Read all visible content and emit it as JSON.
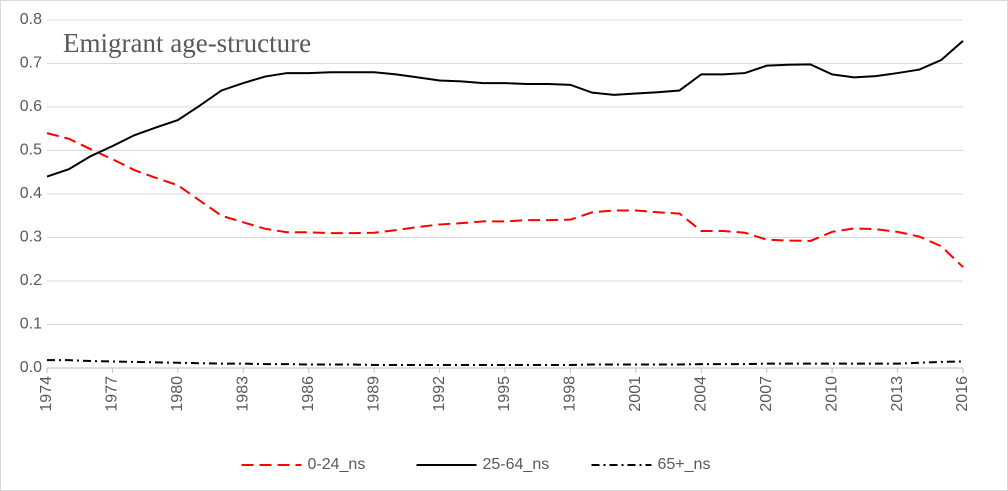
{
  "chart_data": {
    "type": "line",
    "title": "Emigrant age-structure",
    "x": [
      1974,
      1975,
      1976,
      1977,
      1978,
      1979,
      1980,
      1981,
      1982,
      1983,
      1984,
      1985,
      1986,
      1987,
      1988,
      1989,
      1990,
      1991,
      1992,
      1993,
      1994,
      1995,
      1996,
      1997,
      1998,
      1999,
      2000,
      2001,
      2002,
      2003,
      2004,
      2005,
      2006,
      2007,
      2008,
      2009,
      2010,
      2011,
      2012,
      2013,
      2014,
      2015,
      2016
    ],
    "series": [
      {
        "name": "0-24_ns",
        "color": "#ff0000",
        "dash": "dashed",
        "values": [
          0.54,
          0.527,
          0.503,
          0.48,
          0.455,
          0.437,
          0.42,
          0.385,
          0.35,
          0.335,
          0.32,
          0.312,
          0.312,
          0.31,
          0.31,
          0.311,
          0.317,
          0.324,
          0.33,
          0.333,
          0.337,
          0.337,
          0.34,
          0.34,
          0.341,
          0.358,
          0.362,
          0.362,
          0.358,
          0.355,
          0.315,
          0.315,
          0.311,
          0.295,
          0.293,
          0.292,
          0.313,
          0.321,
          0.319,
          0.313,
          0.302,
          0.28,
          0.232
        ]
      },
      {
        "name": "25-64_ns",
        "color": "#000000",
        "dash": "solid",
        "values": [
          0.44,
          0.457,
          0.487,
          0.51,
          0.535,
          0.553,
          0.57,
          0.603,
          0.638,
          0.655,
          0.67,
          0.678,
          0.678,
          0.68,
          0.68,
          0.68,
          0.675,
          0.668,
          0.661,
          0.659,
          0.655,
          0.655,
          0.653,
          0.653,
          0.651,
          0.633,
          0.628,
          0.631,
          0.634,
          0.638,
          0.675,
          0.675,
          0.678,
          0.695,
          0.697,
          0.698,
          0.675,
          0.668,
          0.671,
          0.678,
          0.686,
          0.708,
          0.752
        ]
      },
      {
        "name": "65+_ns",
        "color": "#000000",
        "dash": "dashdot",
        "values": [
          0.018,
          0.018,
          0.016,
          0.015,
          0.014,
          0.013,
          0.012,
          0.011,
          0.01,
          0.01,
          0.009,
          0.009,
          0.008,
          0.008,
          0.008,
          0.007,
          0.007,
          0.007,
          0.007,
          0.007,
          0.007,
          0.007,
          0.007,
          0.007,
          0.007,
          0.008,
          0.008,
          0.008,
          0.008,
          0.008,
          0.009,
          0.009,
          0.009,
          0.01,
          0.01,
          0.01,
          0.01,
          0.01,
          0.01,
          0.01,
          0.012,
          0.014,
          0.015
        ]
      }
    ],
    "xlim": [
      1974,
      2016
    ],
    "xticks": [
      1974,
      1977,
      1980,
      1983,
      1986,
      1989,
      1992,
      1995,
      1998,
      2001,
      2004,
      2007,
      2010,
      2013,
      2016
    ],
    "ylim": [
      0,
      0.8
    ],
    "yticks": [
      {
        "value": 0,
        "label": "0.0"
      },
      0.1,
      0.2,
      0.3,
      0.4,
      0.5,
      0.6,
      0.7,
      0.8
    ],
    "grid": true,
    "legend": "bottom"
  }
}
